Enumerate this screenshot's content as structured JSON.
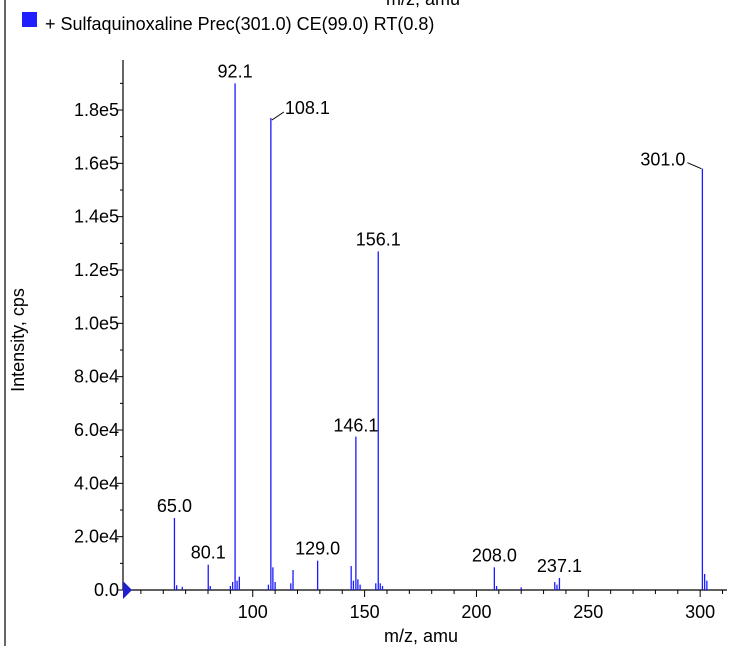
{
  "chart_data": {
    "type": "bar",
    "clipped_top_label": "m/z, amu",
    "title": "+ Sulfaquinoxaline Prec(301.0) CE(99.0) RT(0.8)",
    "legend_color": "#1f1fff",
    "series_color": "#1a1aff",
    "xlabel": "m/z, amu",
    "ylabel": "Intensity, cps",
    "xlim": [
      42,
      312
    ],
    "ylim": [
      0,
      195000
    ],
    "xticks": [
      100,
      150,
      200,
      250,
      300
    ],
    "yticks": [
      {
        "value": 0,
        "label": "0.0"
      },
      {
        "value": 20000,
        "label": "2.0e4"
      },
      {
        "value": 40000,
        "label": "4.0e4"
      },
      {
        "value": 60000,
        "label": "6.0e4"
      },
      {
        "value": 80000,
        "label": "8.0e4"
      },
      {
        "value": 100000,
        "label": "1.0e5"
      },
      {
        "value": 120000,
        "label": "1.2e5"
      },
      {
        "value": 140000,
        "label": "1.4e5"
      },
      {
        "value": 160000,
        "label": "1.6e5"
      },
      {
        "value": 180000,
        "label": "1.8e5"
      }
    ],
    "peaks": [
      {
        "x": 65.0,
        "y": 27000
      },
      {
        "x": 66.0,
        "y": 1800
      },
      {
        "x": 68.5,
        "y": 1200
      },
      {
        "x": 80.1,
        "y": 9500
      },
      {
        "x": 81.0,
        "y": 1500
      },
      {
        "x": 90.0,
        "y": 1500
      },
      {
        "x": 91.0,
        "y": 3000
      },
      {
        "x": 92.1,
        "y": 190000
      },
      {
        "x": 93.0,
        "y": 3500
      },
      {
        "x": 94.0,
        "y": 5000
      },
      {
        "x": 107.0,
        "y": 2000
      },
      {
        "x": 108.1,
        "y": 177000
      },
      {
        "x": 109.0,
        "y": 8500
      },
      {
        "x": 110.0,
        "y": 3000
      },
      {
        "x": 117.0,
        "y": 2500
      },
      {
        "x": 118.0,
        "y": 7500
      },
      {
        "x": 129.0,
        "y": 11000
      },
      {
        "x": 144.0,
        "y": 9000
      },
      {
        "x": 145.0,
        "y": 3500
      },
      {
        "x": 146.1,
        "y": 57500
      },
      {
        "x": 147.0,
        "y": 4000
      },
      {
        "x": 148.0,
        "y": 2000
      },
      {
        "x": 155.0,
        "y": 2500
      },
      {
        "x": 156.1,
        "y": 127000
      },
      {
        "x": 157.0,
        "y": 2500
      },
      {
        "x": 158.0,
        "y": 1500
      },
      {
        "x": 208.0,
        "y": 8500
      },
      {
        "x": 209.0,
        "y": 1500
      },
      {
        "x": 220.0,
        "y": 1000
      },
      {
        "x": 235.0,
        "y": 3000
      },
      {
        "x": 236.0,
        "y": 2000
      },
      {
        "x": 237.1,
        "y": 4500
      },
      {
        "x": 301.0,
        "y": 158000
      },
      {
        "x": 302.0,
        "y": 6000
      },
      {
        "x": 303.0,
        "y": 3500
      }
    ],
    "annotations": [
      {
        "x": 65.0,
        "y": 27000,
        "label": "65.0"
      },
      {
        "x": 80.1,
        "y": 9500,
        "label": "80.1"
      },
      {
        "x": 92.1,
        "y": 190000,
        "label": "92.1"
      },
      {
        "x": 108.1,
        "y": 177000,
        "label": "108.1"
      },
      {
        "x": 129.0,
        "y": 11000,
        "label": "129.0"
      },
      {
        "x": 146.1,
        "y": 57500,
        "label": "146.1"
      },
      {
        "x": 156.1,
        "y": 127000,
        "label": "156.1"
      },
      {
        "x": 208.0,
        "y": 8500,
        "label": "208.0"
      },
      {
        "x": 237.1,
        "y": 4500,
        "label": "237.1"
      },
      {
        "x": 301.0,
        "y": 158000,
        "label": "301.0"
      }
    ]
  }
}
